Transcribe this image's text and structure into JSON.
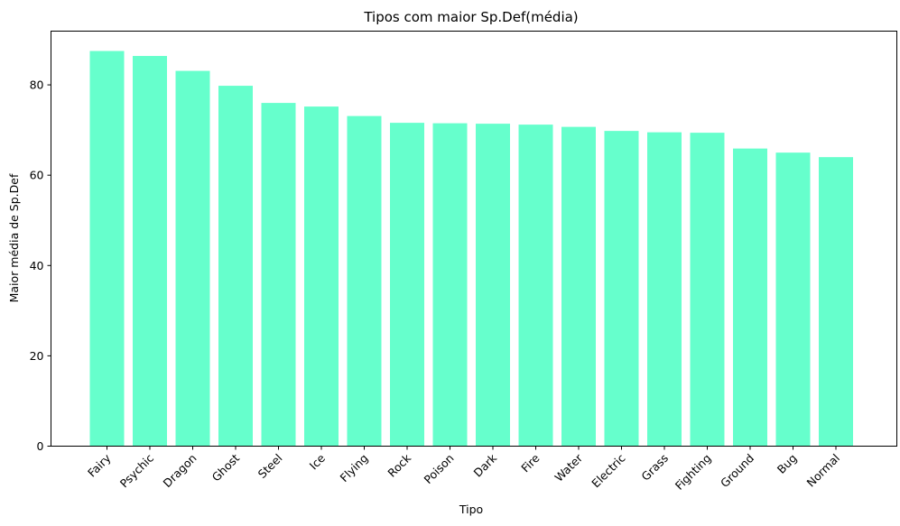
{
  "chart_data": {
    "type": "bar",
    "title": "Tipos com maior Sp.Def(média)",
    "xlabel": "Tipo",
    "ylabel": "Maior média de Sp.Def",
    "categories": [
      "Fairy",
      "Psychic",
      "Dragon",
      "Ghost",
      "Steel",
      "Ice",
      "Flying",
      "Rock",
      "Poison",
      "Dark",
      "Fire",
      "Water",
      "Electric",
      "Grass",
      "Fighting",
      "Ground",
      "Bug",
      "Normal"
    ],
    "values": [
      87.5,
      86.4,
      83.1,
      79.8,
      76.0,
      75.2,
      73.1,
      71.6,
      71.5,
      71.4,
      71.2,
      70.7,
      69.8,
      69.5,
      69.4,
      65.9,
      65.0,
      64.0
    ],
    "ylim": [
      0,
      91.9
    ],
    "yticks": [
      0,
      20,
      40,
      60,
      80
    ],
    "color": "#66ffcc",
    "grid": false
  }
}
